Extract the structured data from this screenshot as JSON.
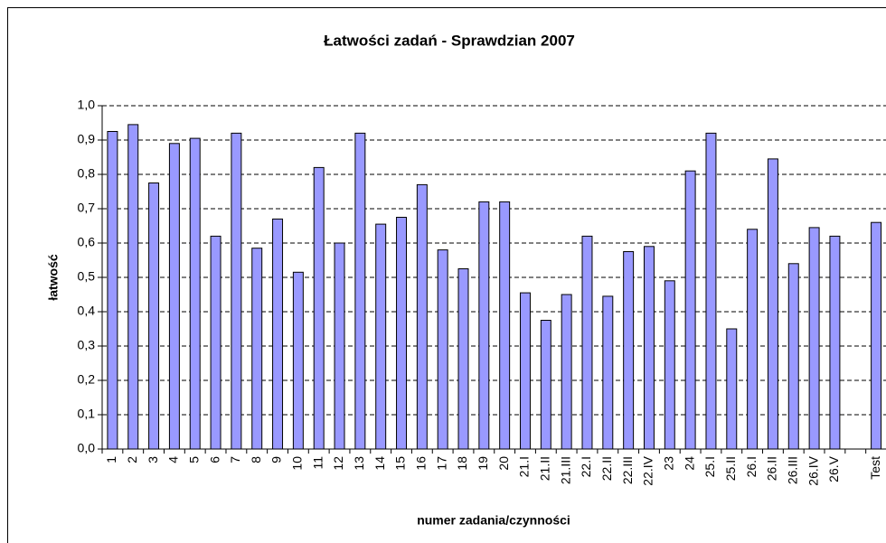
{
  "chart_data": {
    "type": "bar",
    "title": "Łatwości zadań - Sprawdzian 2007",
    "y_label": "łatwość",
    "x_label": "numer zadania/czynności",
    "categories": [
      "1",
      "2",
      "3",
      "4",
      "5",
      "6",
      "7",
      "8",
      "9",
      "10",
      "11",
      "12",
      "13",
      "14",
      "15",
      "16",
      "17",
      "18",
      "19",
      "20",
      "21.I",
      "21.II",
      "21.III",
      "22.I",
      "22.II",
      "22.III",
      "22.IV",
      "23",
      "24",
      "25.I",
      "25.II",
      "26.I",
      "26.II",
      "26.III",
      "26.IV",
      "26.V",
      null,
      "Test"
    ],
    "values": [
      0.925,
      0.945,
      0.775,
      0.89,
      0.905,
      0.62,
      0.92,
      0.585,
      0.67,
      0.515,
      0.82,
      0.6,
      0.92,
      0.655,
      0.675,
      0.77,
      0.58,
      0.525,
      0.72,
      0.72,
      0.455,
      0.375,
      0.45,
      0.62,
      0.445,
      0.575,
      0.59,
      0.49,
      0.81,
      0.92,
      0.35,
      0.64,
      0.845,
      0.54,
      0.645,
      0.62,
      null,
      0.66
    ],
    "color": "#9999ff",
    "ylim": [
      0,
      1
    ],
    "yticks": [
      {
        "value": 0,
        "label": "0,0"
      },
      {
        "value": 0.1,
        "label": "0,1"
      },
      {
        "value": 0.2,
        "label": "0,2"
      },
      {
        "value": 0.3,
        "label": "0,3"
      },
      {
        "value": 0.4,
        "label": "0,4"
      },
      {
        "value": 0.5,
        "label": "0,5"
      },
      {
        "value": 0.6,
        "label": "0,6"
      },
      {
        "value": 0.7,
        "label": "0,7"
      },
      {
        "value": 0.8,
        "label": "0,8"
      },
      {
        "value": 0.9,
        "label": "0,9"
      },
      {
        "value": 1,
        "label": "1,0"
      }
    ],
    "grid": true
  }
}
